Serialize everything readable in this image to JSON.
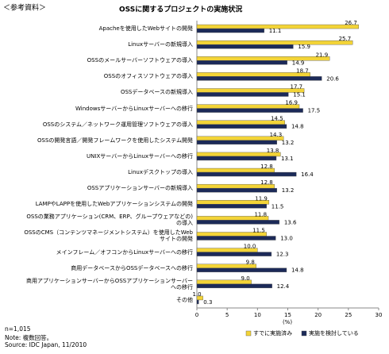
{
  "header": "＜参考資料＞",
  "chart_data": {
    "type": "hbar",
    "title": "OSSに関するプロジェクトの実施状況",
    "categories": [
      "Apacheを使用したWebサイトの開発",
      "Linuxサーバーの新規導入",
      "OSSのメールサーバーソフトウェアの導入",
      "OSSのオフィスソフトウェアの導入",
      "OSSデータベースの新規導入",
      "WindowsサーバーからLinuxサーバーへの移行",
      "OSSのシステム／ネットワーク運用管理ソフトウェアの導入",
      "OSSの開発言語／開発フレームワークを使用したシステム開発",
      "UNIXサーバーからLinuxサーバーへの移行",
      "Linuxデスクトップの導入",
      "OSSアプリケーションサーバーの新規導入",
      "LAMPやLAPPを使用したWebアプリケーションシステムの開発",
      "OSSの業務アプリケーション(CRM、ERP、グループウェアなどの)の導入",
      "OSSのCMS（コンテンツマネージメントシステム）を使用したWebサイトの開発",
      "メインフレーム／オフコンからLinuxサーバーへの移行",
      "商用データベースからOSSデータベースへの移行",
      "商用アプリケーションサーバーからOSSアプリケーションサーバーへの移行",
      "その他"
    ],
    "series": [
      {
        "name": "すでに実施済み",
        "color": "#f3d437",
        "values": [
          26.7,
          25.7,
          21.9,
          18.7,
          17.7,
          16.9,
          14.5,
          14.3,
          13.8,
          12.8,
          12.8,
          11.9,
          11.8,
          11.5,
          10.0,
          9.8,
          9.0,
          1.0
        ],
        "value_labels": [
          "26.7",
          "25.7",
          "21.9",
          "18.7",
          "17.7",
          "16.9",
          "14.5",
          "14.3",
          "13.8",
          "12.8",
          "12.8",
          "11.9",
          "11.8",
          "11.5",
          "10.0",
          "9.8",
          "9.0",
          "1.0"
        ]
      },
      {
        "name": "実施を検討している",
        "color": "#1c2a58",
        "values": [
          11.1,
          15.9,
          14.9,
          20.6,
          15.1,
          17.5,
          14.8,
          13.2,
          13.1,
          16.4,
          13.2,
          11.5,
          13.6,
          13.0,
          12.3,
          14.8,
          12.4,
          0.3
        ],
        "value_labels": [
          "11.1",
          "15.9",
          "14.9",
          "20.6",
          "15.1",
          "17.5",
          "14.8",
          "13.2",
          "13.1",
          "16.4",
          "13.2",
          "11.5",
          "13.6",
          "13.0",
          "12.3",
          "14.8",
          "12.4",
          "0.3"
        ]
      }
    ],
    "xlim": [
      0,
      30
    ],
    "xticks": [
      0,
      5,
      10,
      15,
      20,
      25,
      30
    ],
    "xlabel": "(%)",
    "grid": false
  },
  "notes": [
    "n=1,015",
    "Note: 複数回答。",
    "Source: IDC Japan, 11/2010"
  ]
}
